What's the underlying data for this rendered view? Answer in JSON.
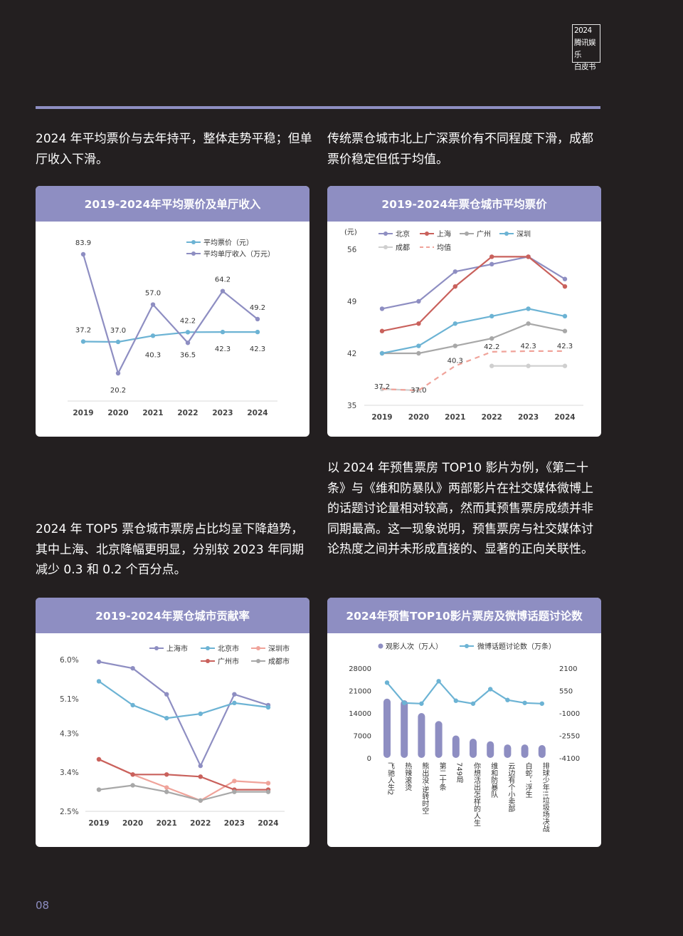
{
  "logo": {
    "line1": "2024",
    "line2": "腾讯娱乐",
    "line3": "白皮书"
  },
  "page_number": "08",
  "paragraphs": {
    "p1": "2024 年平均票价与去年持平，整体走势平稳；但单厅收入下滑。",
    "p2": "传统票仓城市北上广深票价有不同程度下滑，成都票价稳定但低于均值。",
    "p3": "2024 年 TOP5 票仓城市票房占比均呈下降趋势，其中上海、北京降幅更明显，分别较 2023 年同期减少 0.3 和 0.2 个百分点。",
    "p4": "以 2024 年预售票房 TOP10 影片为例，《第二十条》与《维和防暴队》两部影片在社交媒体微博上的话题讨论量相对较高，然而其预售票房成绩并非同期最高。这一现象说明，预售票房与社交媒体讨论热度之间并未形成直接的、显著的正向关联性。"
  },
  "chart_data": [
    {
      "type": "line",
      "title": "2019-2024年平均票价及单厅收入",
      "x": [
        "2019",
        "2020",
        "2021",
        "2022",
        "2023",
        "2024"
      ],
      "series": [
        {
          "name": "平均票价（元）",
          "values": [
            37.2,
            37.0,
            40.3,
            42.2,
            42.3,
            42.3
          ],
          "labels": [
            "37.2",
            "37.0",
            "40.3",
            "42.2",
            "42.3",
            "42.3"
          ],
          "color": "#6cb3d4"
        },
        {
          "name": "平均单厅收入（万元）",
          "values": [
            83.9,
            20.2,
            57.0,
            36.5,
            64.2,
            49.2
          ],
          "labels": [
            "83.9",
            "20.2",
            "57.0",
            "36.5",
            "64.2",
            "49.2"
          ],
          "color": "#8e8ec2"
        }
      ],
      "legend_position": "top-right"
    },
    {
      "type": "line",
      "title": "2019-2024年票仓城市平均票价",
      "ylabel": "(元)",
      "ylim": [
        35,
        56
      ],
      "yticks": [
        "56",
        "49",
        "42",
        "35"
      ],
      "x": [
        "2019",
        "2020",
        "2021",
        "2022",
        "2023",
        "2024"
      ],
      "series": [
        {
          "name": "北京",
          "values": [
            48,
            49,
            53,
            54,
            55,
            52
          ],
          "color": "#8e8ec2"
        },
        {
          "name": "上海",
          "values": [
            45,
            46,
            51,
            55,
            55,
            51
          ],
          "color": "#c9615c"
        },
        {
          "name": "广州",
          "values": [
            42,
            42,
            43,
            44,
            46,
            45
          ],
          "color": "#a8a8a8"
        },
        {
          "name": "深圳",
          "values": [
            42,
            43,
            46,
            47,
            48,
            47
          ],
          "color": "#6cb3d4"
        },
        {
          "name": "成都",
          "values": [
            37.2,
            37.0,
            null,
            40.3,
            40.3,
            40.3
          ],
          "color": "#cfcfcf"
        },
        {
          "name": "均值",
          "values": [
            37.2,
            37.0,
            40.3,
            42.2,
            42.3,
            42.3
          ],
          "labels": [
            "37.2",
            "37.0",
            "40.3",
            "42.2",
            "42.3",
            "42.3"
          ],
          "color": "#f0a39a",
          "dashed": true
        }
      ],
      "legend_position": "top"
    },
    {
      "type": "line",
      "title": "2019-2024年票仓城市贡献率",
      "ylim": [
        2.5,
        6.0
      ],
      "yticks": [
        "6.0%",
        "5.1%",
        "4.3%",
        "3.4%",
        "2.5%"
      ],
      "x": [
        "2019",
        "2020",
        "2021",
        "2022",
        "2023",
        "2024"
      ],
      "series": [
        {
          "name": "上海市",
          "values": [
            5.95,
            5.8,
            5.2,
            3.55,
            5.2,
            4.95
          ],
          "color": "#8e8ec2"
        },
        {
          "name": "北京市",
          "values": [
            5.5,
            4.95,
            4.65,
            4.75,
            5.0,
            4.9
          ],
          "color": "#6cb3d4"
        },
        {
          "name": "深圳市",
          "values": [
            3.7,
            3.35,
            3.05,
            2.75,
            3.2,
            3.15
          ],
          "color": "#f0a39a"
        },
        {
          "name": "广州市",
          "values": [
            3.7,
            3.35,
            3.35,
            3.3,
            3.0,
            3.0
          ],
          "color": "#c9615c"
        },
        {
          "name": "成都市",
          "values": [
            3.0,
            3.1,
            2.95,
            2.75,
            2.95,
            2.95
          ],
          "color": "#a8a8a8"
        }
      ],
      "legend_position": "top-right"
    },
    {
      "type": "bar",
      "title": "2024年预售TOP10影片票房及微博话题讨论数",
      "categories": [
        "飞驰人生2",
        "热辣滚烫",
        "熊出没·逆转时空",
        "第二十条",
        "749局",
        "你想活出怎样的人生",
        "维和防暴队",
        "云边有个小卖部",
        "白蛇：浮生",
        "排球少年!!垃圾场决战"
      ],
      "series": [
        {
          "name": "观影人次（万人）",
          "type": "bar",
          "axis": "left",
          "values": [
            18500,
            18000,
            14000,
            11500,
            7000,
            6000,
            5200,
            4200,
            4200,
            4000
          ],
          "color": "#8e8ec2"
        },
        {
          "name": "微博话题讨论数（万条）",
          "type": "line",
          "axis": "right",
          "values": [
            1100,
            -300,
            -350,
            1200,
            -150,
            -350,
            650,
            -100,
            -300,
            -350
          ],
          "color": "#6cb3d4"
        }
      ],
      "left_ylim": [
        0,
        28000
      ],
      "left_yticks": [
        "28000",
        "21000",
        "14000",
        "7000",
        "0"
      ],
      "right_ylim": [
        -4100,
        2100
      ],
      "right_yticks": [
        "2100",
        "550",
        "-1000",
        "-2550",
        "-4100"
      ],
      "legend_position": "top"
    }
  ]
}
